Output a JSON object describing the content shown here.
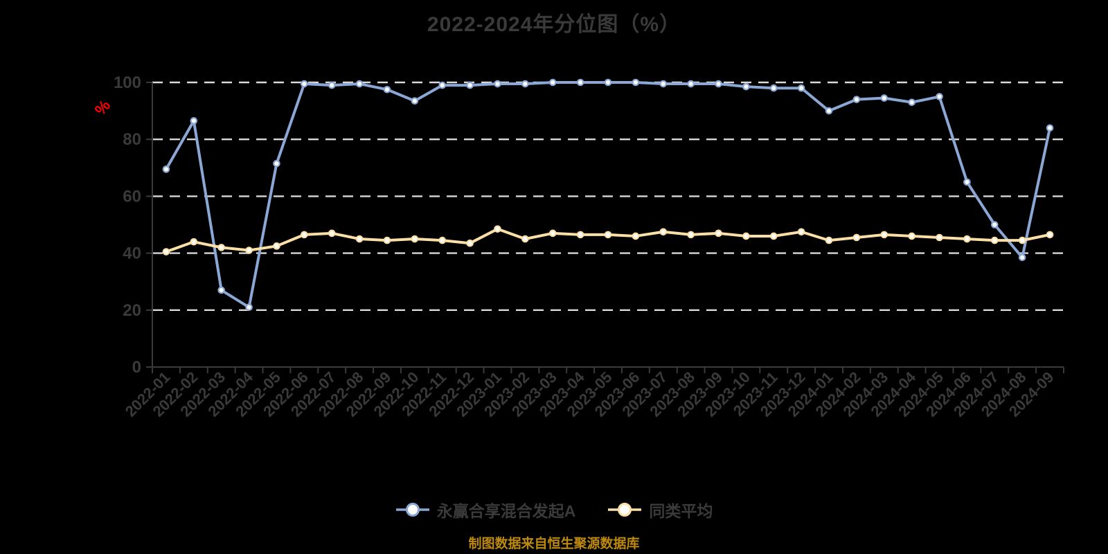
{
  "title": "2022-2024年分位图（%）",
  "footer": "制图数据来自恒生聚源数据库",
  "colors": {
    "background": "#000000",
    "text": "#3a3a3a",
    "grid": "#d9d9d9",
    "axis": "#3a3a3a",
    "y_name_color": "#ff0000",
    "footer_color": "#bd8a0e",
    "marker_fill": "#ffffff"
  },
  "legend": [
    {
      "label": "永赢合享混合发起A",
      "color": "#8ba7d6"
    },
    {
      "label": "同类平均",
      "color": "#fbdfa6"
    }
  ],
  "chart_data": {
    "type": "line",
    "title": "2022-2024年分位图（%）",
    "xlabel": "",
    "ylabel": "%",
    "ylim": [
      0,
      100
    ],
    "yticks": [
      0,
      20,
      40,
      60,
      80,
      100
    ],
    "grid": "horizontal dashed",
    "legend_position": "bottom",
    "categories": [
      "2022-01",
      "2022-02",
      "2022-03",
      "2022-04",
      "2022-05",
      "2022-06",
      "2022-07",
      "2022-08",
      "2022-09",
      "2022-10",
      "2022-11",
      "2022-12",
      "2023-01",
      "2023-02",
      "2023-03",
      "2023-04",
      "2023-05",
      "2023-06",
      "2023-07",
      "2023-08",
      "2023-09",
      "2023-10",
      "2023-11",
      "2023-12",
      "2024-01",
      "2024-02",
      "2024-03",
      "2024-04",
      "2024-05",
      "2024-06",
      "2024-07",
      "2024-08",
      "2024-09"
    ],
    "series": [
      {
        "name": "永赢合享混合发起A",
        "color": "#8ba7d6",
        "values": [
          69.5,
          86.5,
          27,
          21,
          71.5,
          99.5,
          99,
          99.5,
          97.5,
          93.5,
          99,
          99,
          99.5,
          99.5,
          100,
          100,
          100,
          100,
          99.5,
          99.5,
          99.5,
          98.5,
          98,
          98,
          90,
          94,
          94.5,
          93,
          95,
          65,
          50,
          38.5,
          84
        ]
      },
      {
        "name": "同类平均",
        "color": "#fbdfa6",
        "values": [
          40.5,
          44,
          42,
          41,
          42.5,
          46.5,
          47,
          45,
          44.5,
          45,
          44.5,
          43.5,
          48.5,
          45,
          47,
          46.5,
          46.5,
          46,
          47.5,
          46.5,
          47,
          46,
          46,
          47.5,
          44.5,
          45.5,
          46.5,
          46,
          45.5,
          45,
          44.5,
          44.5,
          46.5
        ]
      }
    ]
  }
}
